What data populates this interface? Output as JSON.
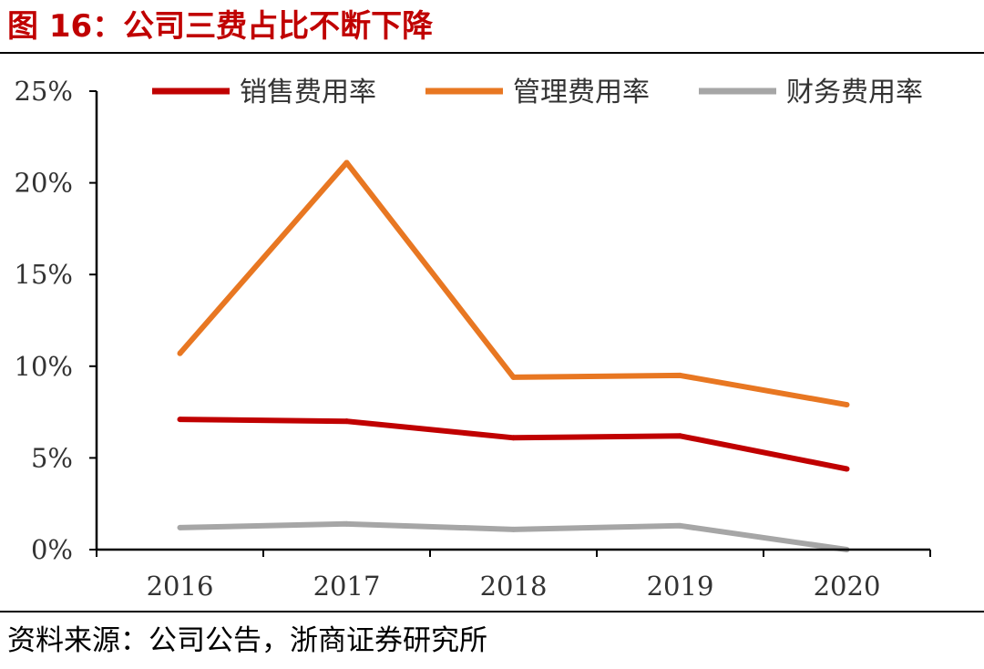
{
  "figure": {
    "title": "图 16：公司三费占比不断下降",
    "source": "资料来源：公司公告，浙商证券研究所"
  },
  "chart_data": {
    "type": "line",
    "title": "图 16：公司三费占比不断下降",
    "xlabel": "",
    "ylabel": "",
    "categories": [
      "2016",
      "2017",
      "2018",
      "2019",
      "2020"
    ],
    "ylim": [
      0,
      25
    ],
    "yticks": [
      0,
      5,
      10,
      15,
      20,
      25
    ],
    "ytick_labels": [
      "0%",
      "5%",
      "10%",
      "15%",
      "20%",
      "25%"
    ],
    "grid": false,
    "legend_position": "top",
    "series": [
      {
        "name": "销售费用率",
        "color": "#C00000",
        "values": [
          7.1,
          7.0,
          6.1,
          6.2,
          4.4
        ]
      },
      {
        "name": "管理费用率",
        "color": "#E87722",
        "values": [
          10.7,
          21.1,
          9.4,
          9.5,
          7.9
        ]
      },
      {
        "name": "财务费用率",
        "color": "#A6A6A6",
        "values": [
          1.2,
          1.4,
          1.1,
          1.3,
          0.0
        ]
      }
    ]
  }
}
